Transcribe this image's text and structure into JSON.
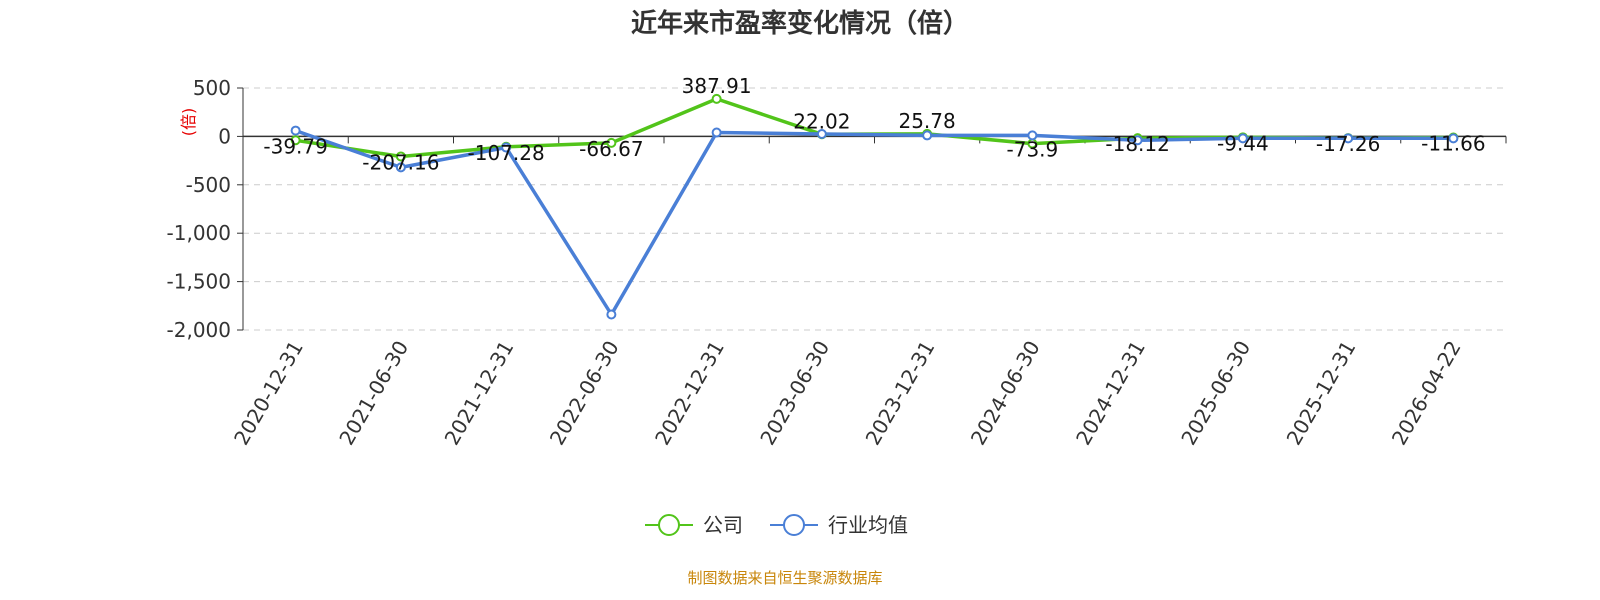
{
  "chart_data": {
    "type": "line",
    "title": "近年来市盈率变化情况（倍）",
    "unit_label": "(倍)",
    "categories": [
      "2020-12-31",
      "2021-06-30",
      "2021-12-31",
      "2022-06-30",
      "2022-12-31",
      "2023-06-30",
      "2023-12-31",
      "2024-06-30",
      "2024-12-31",
      "2025-06-30",
      "2025-12-31",
      "2026-04-22"
    ],
    "series": [
      {
        "name": "公司",
        "color": "#52c41a",
        "values": [
          -39.79,
          -207.16,
          -107.28,
          -66.67,
          387.91,
          22.02,
          25.78,
          -73.9,
          -18.12,
          -9.44,
          -17.26,
          -11.66
        ],
        "labels": [
          "-39.79",
          "-207.16",
          "-107.28",
          "-66.67",
          "387.91",
          "22.02",
          "25.78",
          "-73.9",
          "-18.12",
          "-9.44",
          "-17.26",
          "-11.66"
        ]
      },
      {
        "name": "行业均值",
        "color": "#4a7fd6",
        "values": [
          60,
          -320,
          -115,
          -1840,
          40,
          25,
          10,
          10,
          -40,
          -20,
          -20,
          -20
        ]
      }
    ],
    "yticks": [
      500,
      0,
      -500,
      -1000,
      -1500,
      -2000
    ],
    "ytick_labels": [
      "500",
      "0",
      "-500",
      "-1,000",
      "-1,500",
      "-2,000"
    ],
    "ylim": [
      -2000,
      500
    ],
    "grid": true,
    "legend_position": "bottom-center"
  },
  "source": "制图数据来自恒生聚源数据库"
}
